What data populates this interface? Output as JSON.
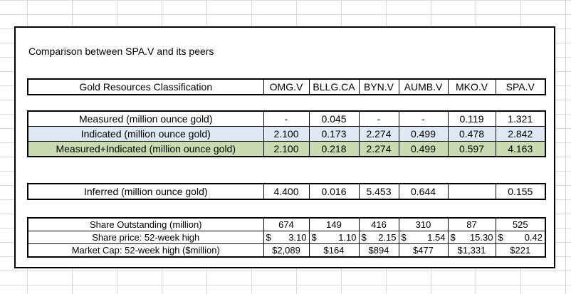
{
  "title": "Comparison between SPA.V and its peers",
  "header": {
    "label": "Gold Resources Classification",
    "columns": [
      "OMG.V",
      "BLLG.CA",
      "BYN.V",
      "AUMB.V",
      "MKO.V",
      "SPA.V"
    ]
  },
  "measured": {
    "label": "Measured (million ounce gold)",
    "values": [
      "-",
      "0.045",
      "-",
      "-",
      "0.119",
      "1.321"
    ]
  },
  "indicated": {
    "label": "Indicated (million ounce gold)",
    "values": [
      "2.100",
      "0.173",
      "2.274",
      "0.499",
      "0.478",
      "2.842"
    ]
  },
  "measured_indicated": {
    "label": "Measured+Indicated (million ounce gold)",
    "values": [
      "2.100",
      "0.218",
      "2.274",
      "0.499",
      "0.597",
      "4.163"
    ]
  },
  "inferred": {
    "label": "Inferred (million ounce gold)",
    "values": [
      "4.400",
      "0.016",
      "5.453",
      "0.644",
      "",
      "0.155"
    ]
  },
  "shares": {
    "label": "Share Outstanding (million)",
    "values": [
      "674",
      "149",
      "416",
      "310",
      "87",
      "525"
    ]
  },
  "price": {
    "label": "Share price: 52-week high",
    "currency": "$",
    "values": [
      "3.10",
      "1.10",
      "2.15",
      "1.54",
      "15.30",
      "0.42"
    ]
  },
  "market_cap": {
    "label": "Market Cap: 52-week high ($million)",
    "values": [
      "$2,089",
      "$164",
      "$894",
      "$477",
      "$1,331",
      "$221"
    ]
  },
  "colors": {
    "indicated_fill": "#dde8f4",
    "measured_indicated_fill": "#c9dcb0",
    "gridline": "#d9d9d9"
  }
}
